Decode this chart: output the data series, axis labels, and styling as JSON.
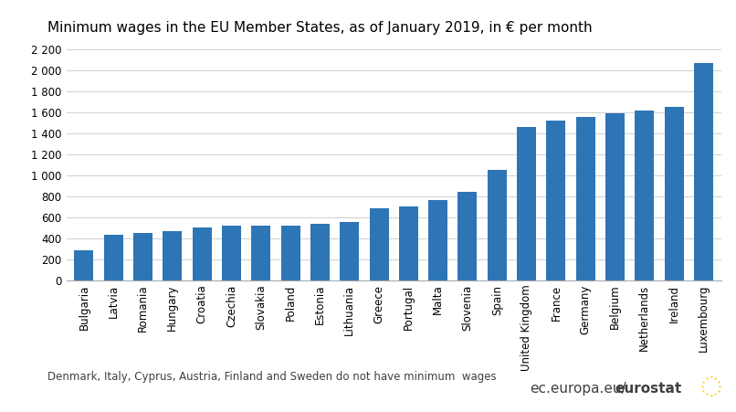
{
  "title": "Minimum wages in the EU Member States, as of January 2019, in € per month",
  "categories": [
    "Bulgaria",
    "Latvia",
    "Romania",
    "Hungary",
    "Croatia",
    "Czechia",
    "Slovakia",
    "Poland",
    "Estonia",
    "Lithuania",
    "Greece",
    "Portugal",
    "Malta",
    "Slovenia",
    "Spain",
    "United Kingdom",
    "France",
    "Germany",
    "Belgium",
    "Netherlands",
    "Ireland",
    "Luxembourg"
  ],
  "values": [
    286,
    430,
    446,
    464,
    505,
    519,
    520,
    523,
    540,
    555,
    683,
    700,
    762,
    843,
    1050,
    1461,
    1521,
    1557,
    1594,
    1616,
    1656,
    2071
  ],
  "bar_color": "#2E75B6",
  "footnote": "Denmark, Italy, Cyprus, Austria, Finland and Sweden do not have minimum  wages",
  "watermark_text": "ec.europa.eu/",
  "watermark_bold": "eurostat",
  "ylim": [
    0,
    2200
  ],
  "yticks": [
    0,
    200,
    400,
    600,
    800,
    1000,
    1200,
    1400,
    1600,
    1800,
    2000,
    2200
  ],
  "ytick_labels": [
    "0",
    "200",
    "400",
    "600",
    "800",
    "1 000",
    "1 200",
    "1 400",
    "1 600",
    "1 800",
    "2 000",
    "2 200"
  ],
  "background_color": "#ffffff",
  "grid_color": "#d0d0d0",
  "title_fontsize": 11,
  "tick_fontsize": 8.5,
  "footnote_fontsize": 8.5
}
